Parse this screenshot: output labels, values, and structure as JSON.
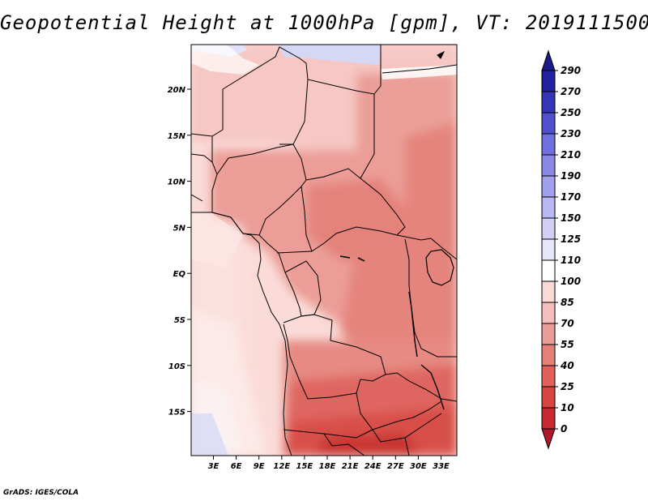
{
  "title": "Geopotential Height at 1000hPa [gpm], VT: 2019111500",
  "credit": "GrADS: IGES/COLA",
  "map": {
    "lon_ticks": [
      "3E",
      "6E",
      "9E",
      "12E",
      "15E",
      "18E",
      "21E",
      "24E",
      "27E",
      "30E",
      "33E"
    ],
    "lat_ticks": [
      "20N",
      "15N",
      "10N",
      "5N",
      "EQ",
      "5S",
      "10S",
      "15S"
    ]
  },
  "colorbar": {
    "levels": [
      "0",
      "10",
      "25",
      "40",
      "55",
      "70",
      "85",
      "100",
      "110",
      "125",
      "150",
      "170",
      "190",
      "210",
      "230",
      "250",
      "270",
      "290"
    ],
    "colors": [
      "#b2182b",
      "#c7292f",
      "#d6453e",
      "#e0605a",
      "#e57f78",
      "#ec9c96",
      "#f3bebb",
      "#fad9d6",
      "#ffffff",
      "#e6e6fa",
      "#d0d0f7",
      "#b8b8f2",
      "#a0a0ee",
      "#8a8ae6",
      "#6f6fde",
      "#5050cc",
      "#3535b8",
      "#2222a0",
      "#1a1a8a"
    ]
  }
}
